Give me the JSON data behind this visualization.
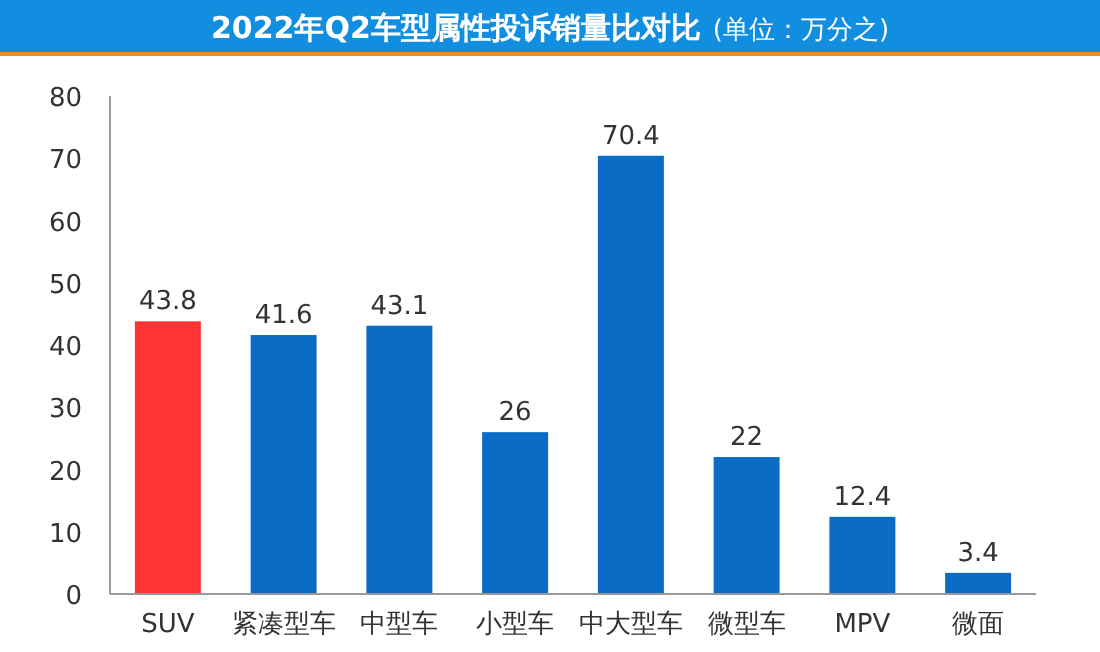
{
  "chart_data": {
    "type": "bar",
    "title": "2022年Q2车型属性投诉销量比对比",
    "subtitle": "(单位：万分之)",
    "categories": [
      "SUV",
      "紧凑型车",
      "中型车",
      "小型车",
      "中大型车",
      "微型车",
      "MPV",
      "微面"
    ],
    "values": [
      43.8,
      41.6,
      43.1,
      26,
      70.4,
      22,
      12.4,
      3.4
    ],
    "colors": [
      "#ff3333",
      "#0a6cc4",
      "#0a6cc4",
      "#0a6cc4",
      "#0a6cc4",
      "#0a6cc4",
      "#0a6cc4",
      "#0a6cc4"
    ],
    "ylim": [
      0,
      80
    ],
    "yticks": [
      0,
      10,
      20,
      30,
      40,
      50,
      60,
      70,
      80
    ],
    "data_labels": true,
    "grid": false
  }
}
